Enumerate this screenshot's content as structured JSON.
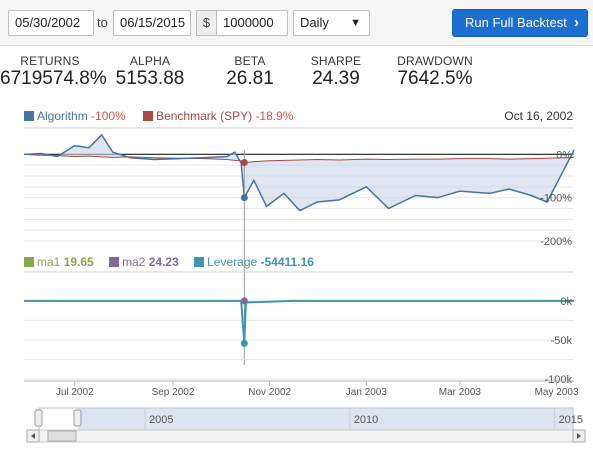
{
  "controls": {
    "start_date": "05/30/2002",
    "to_label": "to",
    "end_date": "06/15/2015",
    "currency_symbol": "$",
    "capital": "1000000",
    "frequency": "Daily",
    "run_button_label": "Run Full Backtest"
  },
  "stats": [
    {
      "label": "RETURNS",
      "value": "6719574.8%"
    },
    {
      "label": "ALPHA",
      "value": "5153.88"
    },
    {
      "label": "BETA",
      "value": "26.81"
    },
    {
      "label": "SHARPE",
      "value": "24.39"
    },
    {
      "label": "DRAWDOWN",
      "value": "7642.5%"
    }
  ],
  "returns_legend": {
    "algorithm_label": "Algorithm",
    "algorithm_value": "-100%",
    "benchmark_label": "Benchmark (SPY)",
    "benchmark_value": "-18.9%",
    "date": "Oct 16, 2002"
  },
  "lower_legend": {
    "ma1_label": "ma1",
    "ma1_value": "19.65",
    "ma2_label": "ma2",
    "ma2_value": "24.23",
    "leverage_label": "Leverage",
    "leverage_value": "-54411.16"
  },
  "x_axis_ticks": [
    "Jul 2002",
    "Sep 2002",
    "Nov 2002",
    "Jan 2003",
    "Mar 2003",
    "May 2003"
  ],
  "returns_axis_ticks": [
    "0%",
    "-100%",
    "-200%"
  ],
  "lower_axis_ticks": [
    "0k",
    "-50k",
    "-100k"
  ],
  "navigator_labels": [
    "2005",
    "2010",
    "2015"
  ],
  "colors": {
    "algorithm": "#4572a7",
    "benchmark": "#aa4643",
    "ma1": "#89a54e",
    "ma2": "#80699b",
    "leverage": "#3d96ae",
    "run_button": "#1a6fd1",
    "negative_value": "#d9534f"
  },
  "chart_data": [
    {
      "type": "line",
      "x": [
        "2002-05-30",
        "2002-06-10",
        "2002-06-20",
        "2002-07-01",
        "2002-07-10",
        "2002-07-18",
        "2002-07-25",
        "2002-08-05",
        "2002-08-20",
        "2002-09-05",
        "2002-09-20",
        "2002-10-05",
        "2002-10-10",
        "2002-10-14",
        "2002-10-16",
        "2002-10-22",
        "2002-10-30",
        "2002-11-10",
        "2002-11-20",
        "2002-12-01",
        "2002-12-15",
        "2003-01-01",
        "2003-01-15",
        "2003-02-01",
        "2003-02-15",
        "2003-03-01",
        "2003-03-20",
        "2003-04-01",
        "2003-04-15",
        "2003-04-25",
        "2003-05-05",
        "2003-05-12"
      ],
      "series": [
        {
          "name": "Algorithm",
          "values": [
            0,
            2,
            -5,
            20,
            15,
            45,
            5,
            -8,
            -12,
            -10,
            -8,
            -5,
            5,
            -20,
            -100,
            -60,
            -120,
            -90,
            -130,
            -110,
            -105,
            -75,
            -125,
            -95,
            -100,
            -85,
            -90,
            -80,
            -95,
            -110,
            -40,
            10
          ]
        },
        {
          "name": "Benchmark (SPY)",
          "values": [
            0,
            -2,
            -3,
            -5,
            -4,
            -6,
            -7,
            -6,
            -8,
            -9,
            -10,
            -12,
            -14,
            -15,
            -18.9,
            -17,
            -15,
            -14,
            -13,
            -12,
            -13,
            -11,
            -12,
            -11,
            -11,
            -10,
            -10,
            -11,
            -10,
            -9,
            -8,
            -7
          ]
        }
      ],
      "xlabel": "",
      "ylabel": "",
      "ylim": [
        -200,
        10
      ]
    },
    {
      "type": "line",
      "x": [
        "2002-05-30",
        "2002-07-01",
        "2002-09-01",
        "2002-10-14",
        "2002-10-16",
        "2002-10-17",
        "2002-11-15",
        "2003-01-15",
        "2003-03-15",
        "2003-05-12"
      ],
      "series": [
        {
          "name": "Leverage",
          "values": [
            0,
            0,
            0,
            0,
            -54411.16,
            -2000,
            0,
            0,
            0,
            0
          ]
        }
      ],
      "xlabel": "",
      "ylabel": "",
      "ylim": [
        -100000,
        5000
      ]
    }
  ]
}
